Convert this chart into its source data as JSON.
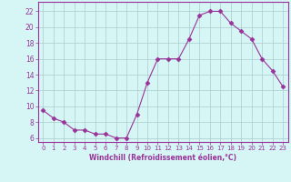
{
  "x": [
    0,
    1,
    2,
    3,
    4,
    5,
    6,
    7,
    8,
    9,
    10,
    11,
    12,
    13,
    14,
    15,
    16,
    17,
    18,
    19,
    20,
    21,
    22,
    23
  ],
  "y": [
    9.5,
    8.5,
    8.0,
    7.0,
    7.0,
    6.5,
    6.5,
    6.0,
    6.0,
    9.0,
    13.0,
    16.0,
    16.0,
    16.0,
    18.5,
    21.5,
    22.0,
    22.0,
    20.5,
    19.5,
    18.5,
    16.0,
    14.5,
    12.5
  ],
  "line_color": "#993399",
  "marker": "D",
  "marker_size": 2.5,
  "bg_color": "#d6f5f5",
  "grid_color": "#aacccc",
  "xlabel": "Windchill (Refroidissement éolien,°C)",
  "ylabel_ticks": [
    6,
    8,
    10,
    12,
    14,
    16,
    18,
    20,
    22
  ],
  "xtick_labels": [
    "0",
    "1",
    "2",
    "3",
    "4",
    "5",
    "6",
    "7",
    "8",
    "9",
    "10",
    "11",
    "12",
    "13",
    "14",
    "15",
    "16",
    "17",
    "18",
    "19",
    "20",
    "21",
    "22",
    "23"
  ],
  "xlim": [
    -0.5,
    23.5
  ],
  "ylim": [
    5.5,
    23.2
  ]
}
